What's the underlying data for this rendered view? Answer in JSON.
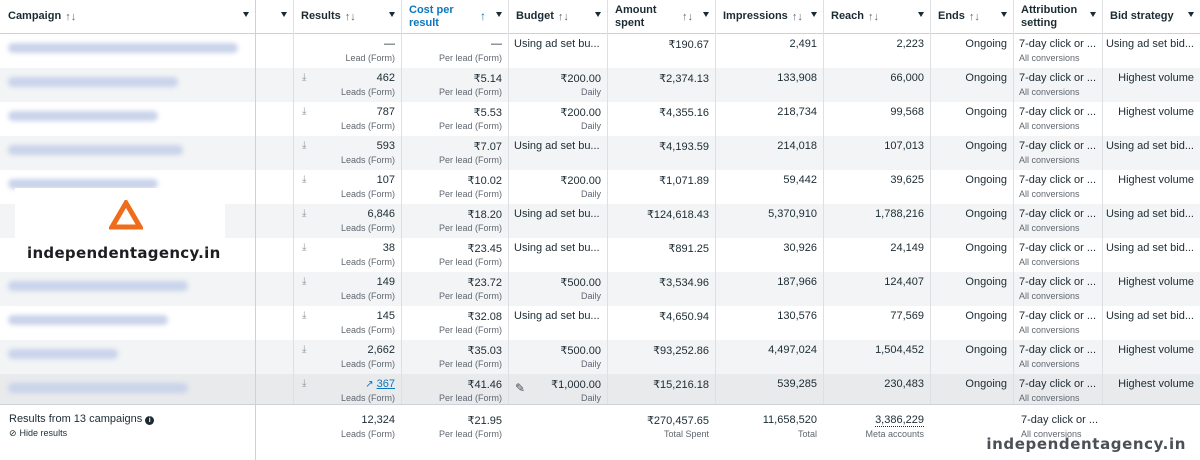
{
  "header": {
    "campaign": "Campaign",
    "results": "Results",
    "cost_per_result": "Cost per result",
    "budget": "Budget",
    "amount_spent": "Amount spent",
    "impressions": "Impressions",
    "reach": "Reach",
    "ends": "Ends",
    "attribution": "Attribution setting",
    "bid_strategy": "Bid strategy",
    "sort_icon": "↑↓",
    "active_sort_icon": "↑"
  },
  "rows": [
    {
      "result": "—",
      "result_sub": "Lead (Form)",
      "cpr": "—",
      "cpr_sub": "Per lead (Form)",
      "budget": "Using ad set bu...",
      "budget_sub": "",
      "spent": "₹190.67",
      "impressions": "2,491",
      "reach": "2,223",
      "ends": "Ongoing",
      "attr": "7-day click or ...",
      "attr_sub": "All conversions",
      "bid": "Using ad set bid..."
    },
    {
      "result": "462",
      "result_sub": "Leads (Form)",
      "cpr": "₹5.14",
      "cpr_sub": "Per lead (Form)",
      "budget": "₹200.00",
      "budget_sub": "Daily",
      "spent": "₹2,374.13",
      "impressions": "133,908",
      "reach": "66,000",
      "ends": "Ongoing",
      "attr": "7-day click or ...",
      "attr_sub": "All conversions",
      "bid": "Highest volume"
    },
    {
      "result": "787",
      "result_sub": "Leads (Form)",
      "cpr": "₹5.53",
      "cpr_sub": "Per lead (Form)",
      "budget": "₹200.00",
      "budget_sub": "Daily",
      "spent": "₹4,355.16",
      "impressions": "218,734",
      "reach": "99,568",
      "ends": "Ongoing",
      "attr": "7-day click or ...",
      "attr_sub": "All conversions",
      "bid": "Highest volume"
    },
    {
      "result": "593",
      "result_sub": "Leads (Form)",
      "cpr": "₹7.07",
      "cpr_sub": "Per lead (Form)",
      "budget": "Using ad set bu...",
      "budget_sub": "",
      "spent": "₹4,193.59",
      "impressions": "214,018",
      "reach": "107,013",
      "ends": "Ongoing",
      "attr": "7-day click or ...",
      "attr_sub": "All conversions",
      "bid": "Using ad set bid..."
    },
    {
      "result": "107",
      "result_sub": "Leads (Form)",
      "cpr": "₹10.02",
      "cpr_sub": "Per lead (Form)",
      "budget": "₹200.00",
      "budget_sub": "Daily",
      "spent": "₹1,071.89",
      "impressions": "59,442",
      "reach": "39,625",
      "ends": "Ongoing",
      "attr": "7-day click or ...",
      "attr_sub": "All conversions",
      "bid": "Highest volume"
    },
    {
      "result": "6,846",
      "result_sub": "Leads (Form)",
      "cpr": "₹18.20",
      "cpr_sub": "Per lead (Form)",
      "budget": "Using ad set bu...",
      "budget_sub": "",
      "spent": "₹124,618.43",
      "impressions": "5,370,910",
      "reach": "1,788,216",
      "ends": "Ongoing",
      "attr": "7-day click or ...",
      "attr_sub": "All conversions",
      "bid": "Using ad set bid..."
    },
    {
      "result": "38",
      "result_sub": "Leads (Form)",
      "cpr": "₹23.45",
      "cpr_sub": "Per lead (Form)",
      "budget": "Using ad set bu...",
      "budget_sub": "",
      "spent": "₹891.25",
      "impressions": "30,926",
      "reach": "24,149",
      "ends": "Ongoing",
      "attr": "7-day click or ...",
      "attr_sub": "All conversions",
      "bid": "Using ad set bid..."
    },
    {
      "result": "149",
      "result_sub": "Leads (Form)",
      "cpr": "₹23.72",
      "cpr_sub": "Per lead (Form)",
      "budget": "₹500.00",
      "budget_sub": "Daily",
      "spent": "₹3,534.96",
      "impressions": "187,966",
      "reach": "124,407",
      "ends": "Ongoing",
      "attr": "7-day click or ...",
      "attr_sub": "All conversions",
      "bid": "Highest volume"
    },
    {
      "result": "145",
      "result_sub": "Leads (Form)",
      "cpr": "₹32.08",
      "cpr_sub": "Per lead (Form)",
      "budget": "Using ad set bu...",
      "budget_sub": "",
      "spent": "₹4,650.94",
      "impressions": "130,576",
      "reach": "77,569",
      "ends": "Ongoing",
      "attr": "7-day click or ...",
      "attr_sub": "All conversions",
      "bid": "Using ad set bid..."
    },
    {
      "result": "2,662",
      "result_sub": "Leads (Form)",
      "cpr": "₹35.03",
      "cpr_sub": "Per lead (Form)",
      "budget": "₹500.00",
      "budget_sub": "Daily",
      "spent": "₹93,252.86",
      "impressions": "4,497,024",
      "reach": "1,504,452",
      "ends": "Ongoing",
      "attr": "7-day click or ...",
      "attr_sub": "All conversions",
      "bid": "Highest volume"
    },
    {
      "result": "367",
      "result_sub": "Leads (Form)",
      "cpr": "₹41.46",
      "cpr_sub": "Per lead (Form)",
      "budget": "₹1,000.00",
      "budget_sub": "Daily",
      "spent": "₹15,216.18",
      "impressions": "539,285",
      "reach": "230,483",
      "ends": "Ongoing",
      "attr": "7-day click or ...",
      "attr_sub": "All conversions",
      "bid": "Highest volume",
      "trend_icon": "trend-up-icon",
      "edit_icon": "pencil-icon"
    }
  ],
  "footer": {
    "summary": "Results from 13 campaigns",
    "hide": "Hide results",
    "results": "12,324",
    "results_sub": "Leads (Form)",
    "cpr": "₹21.95",
    "cpr_sub": "Per lead (Form)",
    "spent": "₹270,457.65",
    "spent_sub": "Total Spent",
    "impressions": "11,658,520",
    "impressions_sub": "Total",
    "reach": "3,386,229",
    "reach_sub": "Meta accounts",
    "attr": "7-day click or ...",
    "attr_sub": "All conversions"
  },
  "logo": {
    "text": "independentagency.in",
    "color": "#ef6c1a"
  },
  "watermark": "independentagency.in",
  "colors": {
    "link": "#0a78be",
    "alt_row": "#f2f4f5",
    "border": "#dddfe2"
  }
}
